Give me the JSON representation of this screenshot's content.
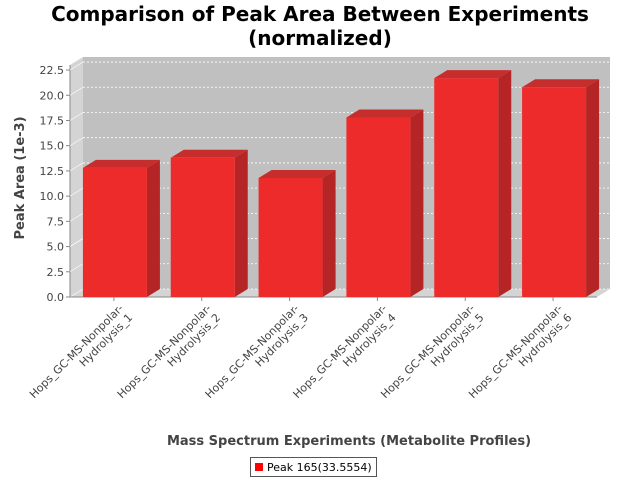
{
  "chart_data": {
    "type": "bar",
    "title_lines": [
      "Comparison of Peak Area Between Experiments",
      "(normalized)"
    ],
    "xlabel": "Mass Spectrum Experiments (Metabolite Profiles)",
    "ylabel": "Peak Area (1e-3)",
    "categories": [
      [
        "Hops_GC-MS-Nonpolar-",
        "Hydrolysis_1"
      ],
      [
        "Hops_GC-MS-Nonpolar-",
        "Hydrolysis_2"
      ],
      [
        "Hops_GC-MS-Nonpolar-",
        "Hydrolysis_3"
      ],
      [
        "Hops_GC-MS-Nonpolar-",
        "Hydrolysis_4"
      ],
      [
        "Hops_GC-MS-Nonpolar-",
        "Hydrolysis_5"
      ],
      [
        "Hops_GC-MS-Nonpolar-",
        "Hydrolysis_6"
      ]
    ],
    "series": [
      {
        "name": "Peak 165(33.5554)",
        "values": [
          12.8,
          13.8,
          11.8,
          17.8,
          21.7,
          20.8
        ]
      }
    ],
    "ylim": [
      0,
      23
    ],
    "yticks": [
      "0.0",
      "2.5",
      "5.0",
      "7.5",
      "10.0",
      "12.5",
      "15.0",
      "17.5",
      "20.0",
      "22.5"
    ],
    "grid": true,
    "legend_position": "bottom",
    "colors": {
      "bar_front": "#ee2b2b",
      "bar_side": "#b52525",
      "bar_top": "#c62d2d",
      "plot_back": "#c0c0c0",
      "plot_floor": "#d4d4d4"
    }
  }
}
